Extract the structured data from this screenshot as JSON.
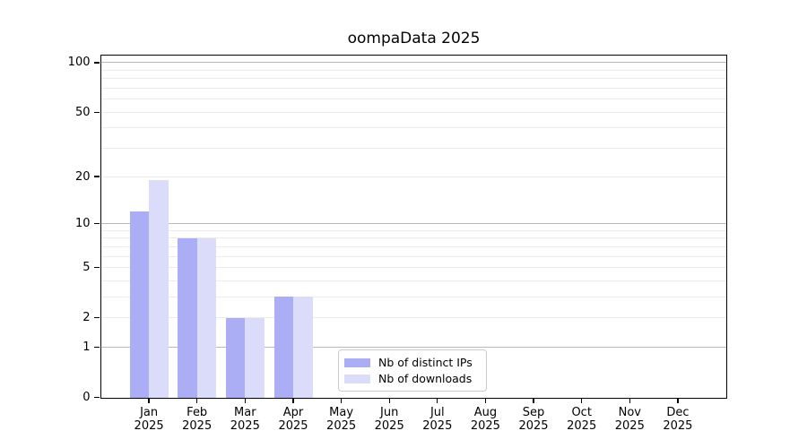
{
  "chart_data": {
    "type": "bar",
    "title": "oompaData 2025",
    "categories": [
      "Jan 2025",
      "Feb 2025",
      "Mar 2025",
      "Apr 2025",
      "May 2025",
      "Jun 2025",
      "Jul 2025",
      "Aug 2025",
      "Sep 2025",
      "Oct 2025",
      "Nov 2025",
      "Dec 2025"
    ],
    "series": [
      {
        "name": "Nb of distinct IPs",
        "color": "#abadf5",
        "values": [
          12,
          8,
          2,
          3,
          0,
          0,
          0,
          0,
          0,
          0,
          0,
          0
        ]
      },
      {
        "name": "Nb of downloads",
        "color": "#dadcfa",
        "values": [
          19,
          8,
          2,
          3,
          0,
          0,
          0,
          0,
          0,
          0,
          0,
          0
        ]
      }
    ],
    "xlabel": "",
    "ylabel": "",
    "yscale": "log1p",
    "ylim": [
      0,
      111
    ],
    "ytick_values": [
      0,
      1,
      2,
      5,
      10,
      20,
      50,
      100
    ],
    "major_grid_values": [
      1,
      10,
      100
    ],
    "minor_grid_values": [
      2,
      3,
      4,
      5,
      6,
      7,
      8,
      9,
      20,
      30,
      40,
      50,
      60,
      70,
      80,
      90
    ],
    "grid": true,
    "legend_position": "bottom-center"
  },
  "style": {
    "major_grid_color": "#b9b9b9",
    "minor_grid_color": "#ebebeb",
    "axis_color": "#000000",
    "text_color": "#000000",
    "background": "#ffffff"
  }
}
